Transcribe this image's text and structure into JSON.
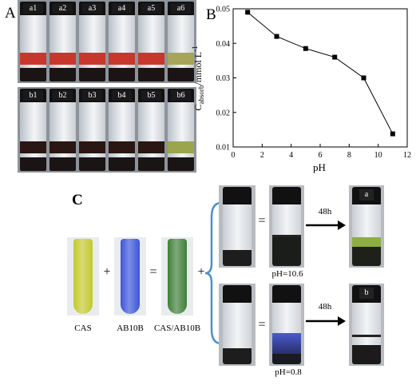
{
  "panels": {
    "a": "A",
    "b": "B",
    "c": "C"
  },
  "vial_set_a": [
    {
      "label": "a1",
      "band": "#c8372c"
    },
    {
      "label": "a2",
      "band": "#c8372c"
    },
    {
      "label": "a3",
      "band": "#c8372c"
    },
    {
      "label": "a4",
      "band": "#c8372c"
    },
    {
      "label": "a5",
      "band": "#c8372c"
    },
    {
      "label": "a6",
      "band": "#a7a55a"
    }
  ],
  "vial_set_b": [
    {
      "label": "b1",
      "band": "#2a1612"
    },
    {
      "label": "b2",
      "band": "#2a1612"
    },
    {
      "label": "b3",
      "band": "#2a1612"
    },
    {
      "label": "b4",
      "band": "#2a1612"
    },
    {
      "label": "b5",
      "band": "#2a1612"
    },
    {
      "label": "b6",
      "band": "#9aa54d"
    }
  ],
  "chart_data": {
    "type": "line",
    "x": [
      1,
      3,
      5,
      7,
      9,
      11
    ],
    "y": [
      0.049,
      0.042,
      0.0385,
      0.036,
      0.03,
      0.0138
    ],
    "xlabel": "pH",
    "ylabel_main": "C",
    "ylabel_sub": "absorb",
    "ylabel_unit": "/mmol L",
    "ylabel_sup": "-1",
    "xlim": [
      0,
      12
    ],
    "ylim": [
      0.01,
      0.05
    ],
    "xticks": [
      "0",
      "2",
      "4",
      "6",
      "8",
      "10",
      "12"
    ],
    "yticks": [
      "0.01",
      "0.02",
      "0.03",
      "0.04",
      "0.05"
    ],
    "grid": false,
    "marker": "square"
  },
  "scheme": {
    "tube_labels": [
      "CAS",
      "AB10B",
      "CAS/AB10B"
    ],
    "tube_colors": [
      "#c3c92d",
      "#3b55d8",
      "#3f7f3a"
    ],
    "plus": "+",
    "equals": "=",
    "arrow_label": "48h",
    "condition_top": "pH=10.6",
    "condition_bottom": "pH=0.8",
    "result_top": "a",
    "result_bottom": "b"
  }
}
